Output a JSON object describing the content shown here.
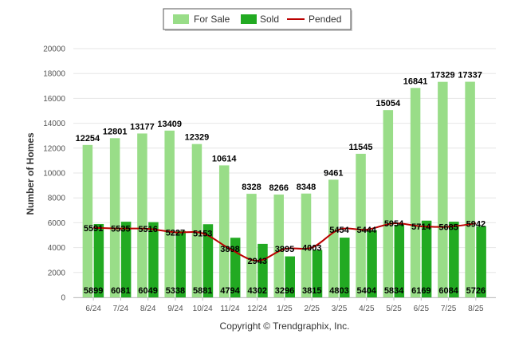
{
  "chart_data": {
    "type": "bar",
    "categories": [
      "6/24",
      "7/24",
      "8/24",
      "9/24",
      "10/24",
      "11/24",
      "12/24",
      "1/25",
      "2/25",
      "3/25",
      "4/25",
      "5/25",
      "6/25",
      "7/25",
      "8/25"
    ],
    "series": [
      {
        "name": "For Sale",
        "type": "bar",
        "color": "#99dd88",
        "values": [
          12254,
          12801,
          13177,
          13409,
          12329,
          10614,
          8328,
          8266,
          8348,
          9461,
          11545,
          15054,
          16841,
          17329,
          17337
        ]
      },
      {
        "name": "Sold",
        "type": "bar",
        "color": "#22aa22",
        "values": [
          5899,
          6081,
          6049,
          5338,
          5881,
          4794,
          4302,
          3296,
          3815,
          4803,
          5404,
          5834,
          6169,
          6084,
          5726
        ]
      },
      {
        "name": "Pended",
        "type": "line",
        "color": "#bb0000",
        "values": [
          5591,
          5535,
          5516,
          5227,
          5153,
          3898,
          2943,
          3895,
          4003,
          5454,
          5444,
          5954,
          5714,
          5685,
          5942
        ]
      }
    ],
    "ylabel": "Number of Homes",
    "ylim": [
      0,
      20000
    ],
    "yticks": [
      0,
      2000,
      4000,
      6000,
      8000,
      10000,
      12000,
      14000,
      16000,
      18000,
      20000
    ],
    "legend_position": "top-center",
    "grid": true,
    "footer": "Copyright © Trendgraphix, Inc."
  }
}
